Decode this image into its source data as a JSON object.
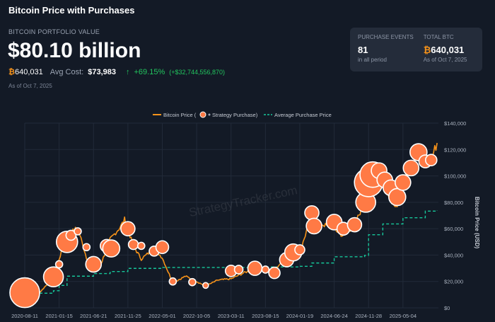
{
  "header": {
    "title": "Bitcoin Price with Purchases"
  },
  "portfolio": {
    "label": "BITCOIN PORTFOLIO VALUE",
    "value": "$80.10 billion",
    "btc_symbol": "₿",
    "btc_amount": "640,031",
    "avg_cost_label": "Avg Cost:",
    "avg_cost": "$73,983",
    "change_arrow": "↑",
    "change_pct": "+69.15%",
    "change_abs": "(+$32,744,556,870)",
    "as_of": "As of Oct 7, 2025"
  },
  "card": {
    "events_label": "PURCHASE EVENTS",
    "events_value": "81",
    "events_sub": "in all period",
    "total_label": "TOTAL BTC",
    "total_symbol": "₿",
    "total_value": "640,031",
    "total_sub": "As of Oct 7, 2025"
  },
  "colors": {
    "background": "#131a26",
    "price_line": "#f7931a",
    "purchase_dot": "#ff7a45",
    "avg_line": "#16c79a",
    "grid": "#222b39"
  },
  "chart_data": {
    "type": "line",
    "legend": [
      "Bitcoin Price (",
      "Strategy Purchase)",
      "Average Purchase Price"
    ],
    "legend_position": "top-center",
    "watermark": "StrategyTracker.com",
    "ylabel": "Bitcoin Price (USD)",
    "ylim": [
      0,
      140000
    ],
    "yticks": [
      "$0",
      "$20,000",
      "$40,000",
      "$60,000",
      "$80,000",
      "$100,000",
      "$120,000",
      "$140,000"
    ],
    "xticks": [
      "2020-08-11",
      "2021-01-15",
      "2021-06-21",
      "2021-11-25",
      "2022-05-01",
      "2022-10-05",
      "2023-03-11",
      "2023-08-15",
      "2024-01-19",
      "2024-06-24",
      "2024-11-28",
      "2025-05-04"
    ],
    "grid": true,
    "series": [
      {
        "name": "Bitcoin Price",
        "x": [
          "2020-08-11",
          "2020-09-15",
          "2020-10-20",
          "2020-11-25",
          "2020-12-20",
          "2021-01-15",
          "2021-02-20",
          "2021-04-10",
          "2021-05-20",
          "2021-06-21",
          "2021-07-20",
          "2021-09-05",
          "2021-10-20",
          "2021-11-10",
          "2021-12-20",
          "2022-01-25",
          "2022-03-25",
          "2022-05-01",
          "2022-06-18",
          "2022-08-15",
          "2022-10-05",
          "2022-11-15",
          "2023-01-10",
          "2023-03-11",
          "2023-05-15",
          "2023-07-15",
          "2023-08-15",
          "2023-09-15",
          "2023-10-25",
          "2023-12-10",
          "2024-01-19",
          "2024-03-14",
          "2024-04-20",
          "2024-06-24",
          "2024-08-05",
          "2024-09-25",
          "2024-11-10",
          "2024-11-28",
          "2024-12-17",
          "2025-02-01",
          "2025-03-10",
          "2025-04-08",
          "2025-05-04",
          "2025-06-10",
          "2025-07-14",
          "2025-08-14",
          "2025-09-10",
          "2025-10-07"
        ],
        "y": [
          11500,
          10700,
          12000,
          18500,
          23500,
          37000,
          55000,
          61000,
          38000,
          33000,
          31000,
          52000,
          61000,
          67000,
          47000,
          37000,
          45000,
          38000,
          19000,
          24000,
          20000,
          16500,
          21000,
          22000,
          27000,
          30000,
          29000,
          27000,
          34000,
          43000,
          41000,
          72000,
          64000,
          60000,
          54000,
          63000,
          80000,
          96000,
          106000,
          99000,
          82000,
          77000,
          95000,
          105000,
          120000,
          115000,
          112000,
          125000
        ]
      },
      {
        "name": "Average Purchase Price",
        "x": [
          "2020-08-11",
          "2020-12-20",
          "2021-01-15",
          "2021-02-20",
          "2021-06-21",
          "2021-09-05",
          "2021-11-25",
          "2022-05-01",
          "2023-03-11",
          "2023-08-15",
          "2024-01-19",
          "2024-03-14",
          "2024-06-24",
          "2024-11-10",
          "2024-11-28",
          "2025-02-01",
          "2025-05-04",
          "2025-08-14",
          "2025-10-07"
        ],
        "y": [
          11100,
          13000,
          17000,
          24000,
          26000,
          27500,
          29900,
          30600,
          30600,
          31000,
          31500,
          34000,
          38700,
          39800,
          55400,
          63600,
          68300,
          73300,
          73983
        ]
      },
      {
        "name": "Strategy Purchase",
        "points": [
          {
            "x": "2020-08-11",
            "y": 11500,
            "size": 42
          },
          {
            "x": "2020-12-20",
            "y": 23500,
            "size": 28
          },
          {
            "x": "2021-01-15",
            "y": 33000,
            "size": 10
          },
          {
            "x": "2021-02-20",
            "y": 50000,
            "size": 30
          },
          {
            "x": "2021-03-10",
            "y": 55000,
            "size": 14
          },
          {
            "x": "2021-04-10",
            "y": 58000,
            "size": 10
          },
          {
            "x": "2021-05-20",
            "y": 46000,
            "size": 10
          },
          {
            "x": "2021-06-21",
            "y": 33000,
            "size": 22
          },
          {
            "x": "2021-08-20",
            "y": 47000,
            "size": 18
          },
          {
            "x": "2021-09-10",
            "y": 45000,
            "size": 24
          },
          {
            "x": "2021-11-25",
            "y": 60000,
            "size": 20
          },
          {
            "x": "2021-12-20",
            "y": 48000,
            "size": 14
          },
          {
            "x": "2022-01-25",
            "y": 47000,
            "size": 10
          },
          {
            "x": "2022-03-25",
            "y": 43000,
            "size": 14
          },
          {
            "x": "2022-05-01",
            "y": 46000,
            "size": 18
          },
          {
            "x": "2022-06-18",
            "y": 20000,
            "size": 10
          },
          {
            "x": "2022-09-15",
            "y": 19500,
            "size": 10
          },
          {
            "x": "2022-11-15",
            "y": 17000,
            "size": 8
          },
          {
            "x": "2023-03-11",
            "y": 28000,
            "size": 16
          },
          {
            "x": "2023-04-15",
            "y": 29000,
            "size": 12
          },
          {
            "x": "2023-06-28",
            "y": 30000,
            "size": 20
          },
          {
            "x": "2023-08-15",
            "y": 29000,
            "size": 10
          },
          {
            "x": "2023-09-25",
            "y": 26500,
            "size": 16
          },
          {
            "x": "2023-11-20",
            "y": 36500,
            "size": 20
          },
          {
            "x": "2023-12-20",
            "y": 42000,
            "size": 24
          },
          {
            "x": "2024-01-19",
            "y": 44000,
            "size": 14
          },
          {
            "x": "2024-03-14",
            "y": 72000,
            "size": 20
          },
          {
            "x": "2024-03-24",
            "y": 62000,
            "size": 22
          },
          {
            "x": "2024-06-24",
            "y": 65000,
            "size": 22
          },
          {
            "x": "2024-08-05",
            "y": 60000,
            "size": 18
          },
          {
            "x": "2024-09-25",
            "y": 63000,
            "size": 20
          },
          {
            "x": "2024-11-15",
            "y": 80000,
            "size": 28
          },
          {
            "x": "2024-11-28",
            "y": 95000,
            "size": 40
          },
          {
            "x": "2024-12-17",
            "y": 101000,
            "size": 36
          },
          {
            "x": "2025-01-15",
            "y": 104000,
            "size": 22
          },
          {
            "x": "2025-02-10",
            "y": 97000,
            "size": 22
          },
          {
            "x": "2025-03-10",
            "y": 91000,
            "size": 22
          },
          {
            "x": "2025-04-08",
            "y": 84000,
            "size": 24
          },
          {
            "x": "2025-05-04",
            "y": 95000,
            "size": 22
          },
          {
            "x": "2025-06-10",
            "y": 106000,
            "size": 22
          },
          {
            "x": "2025-07-14",
            "y": 118000,
            "size": 24
          },
          {
            "x": "2025-08-14",
            "y": 111000,
            "size": 18
          },
          {
            "x": "2025-09-10",
            "y": 112000,
            "size": 16
          }
        ]
      }
    ]
  }
}
